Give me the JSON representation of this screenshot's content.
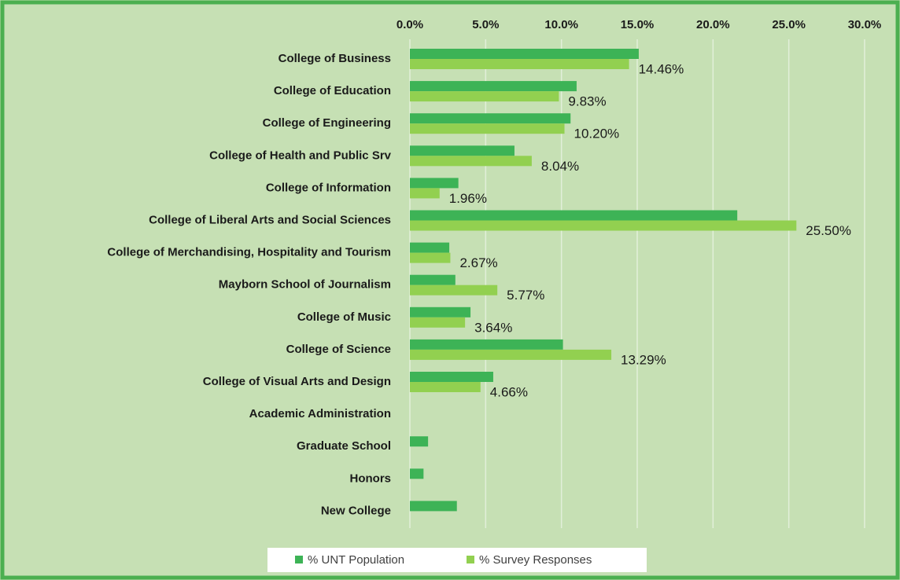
{
  "chart_data": {
    "type": "bar",
    "orientation": "horizontal",
    "categories": [
      "College of Business",
      "College of Education",
      "College of Engineering",
      "College of Health and Public Srv",
      "College of Information",
      "College of Liberal Arts and Social Sciences",
      "College of Merchandising, Hospitality and Tourism",
      "Mayborn School of Journalism",
      "College of Music",
      "College of Science",
      "College of Visual Arts and Design",
      "Academic Administration",
      "Graduate School",
      "Honors",
      "New College"
    ],
    "series": [
      {
        "name": "% UNT Population",
        "color": "#3db356",
        "values": [
          15.1,
          11.0,
          10.6,
          6.9,
          3.2,
          21.6,
          2.6,
          3.0,
          4.0,
          10.1,
          5.5,
          null,
          1.2,
          0.9,
          3.1
        ]
      },
      {
        "name": "% Survey Responses",
        "color": "#92d050",
        "values": [
          14.46,
          9.83,
          10.2,
          8.04,
          1.96,
          25.5,
          2.67,
          5.77,
          3.64,
          13.29,
          4.66,
          null,
          null,
          null,
          null
        ],
        "value_labels": [
          "14.46%",
          "9.83%",
          "10.20%",
          "8.04%",
          "1.96%",
          "25.50%",
          "2.67%",
          "5.77%",
          "3.64%",
          "13.29%",
          "4.66%",
          null,
          null,
          null,
          null
        ]
      }
    ],
    "xlim": [
      0,
      30
    ],
    "xticks": [
      {
        "value": 0,
        "label": "0.0%"
      },
      {
        "value": 5,
        "label": "5.0%"
      },
      {
        "value": 10,
        "label": "10.0%"
      },
      {
        "value": 15,
        "label": "15.0%"
      },
      {
        "value": 20,
        "label": "20.0%"
      },
      {
        "value": 25,
        "label": "25.0%"
      },
      {
        "value": 30,
        "label": "30.0%"
      }
    ],
    "grid": true,
    "legend": "bottom"
  }
}
